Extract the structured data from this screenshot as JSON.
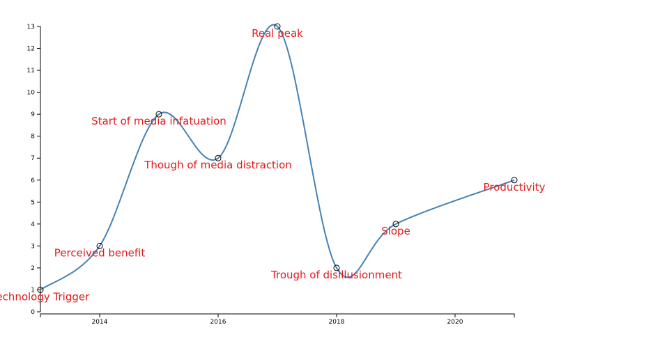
{
  "chart_data": {
    "type": "line",
    "x": [
      2013,
      2014,
      2015,
      2016,
      2017,
      2018,
      2019,
      2021
    ],
    "values": [
      1,
      3,
      9,
      7,
      13,
      2,
      4,
      6
    ],
    "annotations": [
      "Technology Trigger",
      "Perceived benefit",
      "Start of media infatuation",
      "Though of media distraction",
      "Real peak",
      "Trough of disillusionment",
      "Slope",
      "Productivity"
    ],
    "color": "#4682b4",
    "annotation_color": "#e31a1c",
    "xlim": [
      2013,
      2021
    ],
    "xticks": [
      2014,
      2016,
      2018,
      2020
    ],
    "ylim": [
      0,
      13
    ],
    "yticks": [
      0,
      1,
      2,
      3,
      4,
      5,
      6,
      7,
      8,
      9,
      10,
      11,
      12,
      13
    ]
  }
}
